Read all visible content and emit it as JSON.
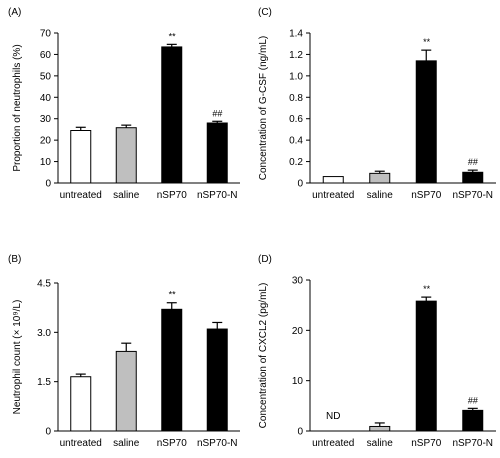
{
  "chart_data": [
    {
      "panel": "(A)",
      "type": "bar",
      "ylabel": "Proportion of neutrophils (%)",
      "ylim": [
        0,
        70
      ],
      "yticks": [
        "0",
        "10",
        "20",
        "30",
        "40",
        "50",
        "60",
        "70"
      ],
      "categories": [
        "untreated",
        "saline",
        "nSP70",
        "nSP70-N"
      ],
      "values": [
        24.5,
        25.8,
        63.5,
        28.0
      ],
      "errors": [
        1.5,
        1.2,
        1.2,
        0.8
      ],
      "colors": [
        "#ffffff",
        "#bfbfbf",
        "#000000",
        "#000000"
      ],
      "annotations": [
        "",
        "",
        "**",
        "##"
      ]
    },
    {
      "panel": "(C)",
      "type": "bar",
      "ylabel": "Concentration of G-CSF (ng/mL)",
      "ylim": [
        0,
        1.4
      ],
      "yticks": [
        "0",
        "0.2",
        "0.4",
        "0.6",
        "0.8",
        "1.0",
        "1.2",
        "1.4"
      ],
      "categories": [
        "untreated",
        "saline",
        "nSP70",
        "nSP70-N"
      ],
      "values": [
        0.06,
        0.09,
        1.14,
        0.1
      ],
      "errors": [
        0.0,
        0.02,
        0.1,
        0.02
      ],
      "colors": [
        "#ffffff",
        "#bfbfbf",
        "#000000",
        "#000000"
      ],
      "annotations": [
        "",
        "",
        "**",
        "##"
      ]
    },
    {
      "panel": "(B)",
      "type": "bar",
      "ylabel": "Neutrophil count (× 10⁹/L)",
      "ylim": [
        0,
        4.5
      ],
      "yticks": [
        "0",
        "1.5",
        "3.0",
        "4.5"
      ],
      "categories": [
        "untreated",
        "saline",
        "nSP70",
        "nSP70-N"
      ],
      "values": [
        1.65,
        2.42,
        3.7,
        3.1
      ],
      "errors": [
        0.08,
        0.25,
        0.2,
        0.2
      ],
      "colors": [
        "#ffffff",
        "#bfbfbf",
        "#000000",
        "#000000"
      ],
      "annotations": [
        "",
        "",
        "**",
        ""
      ]
    },
    {
      "panel": "(D)",
      "type": "bar",
      "ylabel": "Concentration of CXCL2 (pg/mL)",
      "ylim": [
        0,
        30
      ],
      "yticks": [
        "0",
        "10",
        "20",
        "30"
      ],
      "categories": [
        "untreated",
        "saline",
        "nSP70",
        "nSP70-N"
      ],
      "values": [
        null,
        0.9,
        25.8,
        4.1
      ],
      "errors": [
        0,
        0.7,
        0.8,
        0.4
      ],
      "colors": [
        "#ffffff",
        "#bfbfbf",
        "#000000",
        "#000000"
      ],
      "annotations": [
        "ND",
        "",
        "**",
        "##"
      ]
    }
  ]
}
